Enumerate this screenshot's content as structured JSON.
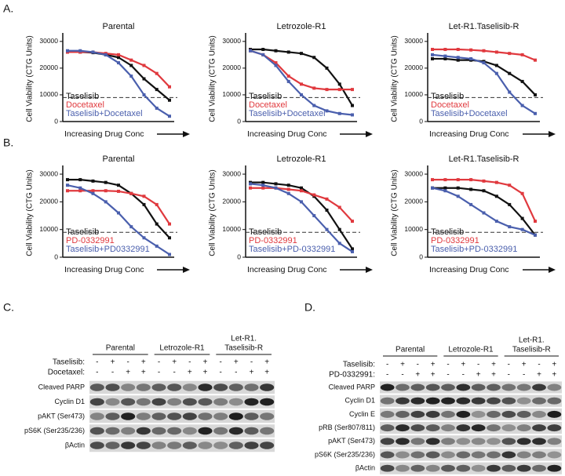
{
  "panels": [
    "A.",
    "B.",
    "C.",
    "D."
  ],
  "chart_data": [
    {
      "type": "line",
      "title": "Parental",
      "ylabel": "Cell Viability (CTG Units)",
      "xlabel": "Increasing Drug Conc",
      "categories": [
        null,
        null,
        null,
        null,
        null,
        null,
        null,
        null,
        null
      ],
      "ylim": [
        0,
        32000
      ],
      "yticks": [
        0,
        10000,
        20000,
        30000
      ],
      "reference_line": 9000,
      "series": [
        {
          "name": "Taselisib",
          "color": "#111111",
          "values": [
            26000,
            26000,
            25800,
            25000,
            24000,
            21000,
            16000,
            12000,
            8000
          ]
        },
        {
          "name": "Docetaxel",
          "color": "#e0393e",
          "values": [
            26000,
            26000,
            26000,
            25500,
            25000,
            23000,
            21000,
            18000,
            13000
          ]
        },
        {
          "name": "Taselisib+Docetaxel",
          "color": "#4a5fad",
          "values": [
            26500,
            26500,
            26000,
            25000,
            22000,
            17000,
            10000,
            5000,
            2000
          ]
        }
      ]
    },
    {
      "type": "line",
      "title": "Letrozole-R1",
      "ylabel": "Cell Viability (CTG Units)",
      "xlabel": "Increasing Drug Conc",
      "categories": [
        null,
        null,
        null,
        null,
        null,
        null,
        null,
        null,
        null
      ],
      "ylim": [
        0,
        32000
      ],
      "yticks": [
        0,
        10000,
        20000,
        30000
      ],
      "reference_line": 9000,
      "series": [
        {
          "name": "Taselisib",
          "color": "#111111",
          "values": [
            27000,
            27000,
            26500,
            26000,
            25500,
            24000,
            20000,
            14000,
            6000
          ]
        },
        {
          "name": "Docetaxel",
          "color": "#e0393e",
          "values": [
            26500,
            25000,
            22000,
            17000,
            14000,
            12500,
            12000,
            12000,
            12000
          ]
        },
        {
          "name": "Taselisib+Docetaxel",
          "color": "#4a5fad",
          "values": [
            26500,
            25000,
            21000,
            15000,
            10000,
            6000,
            4000,
            3000,
            2500
          ]
        }
      ]
    },
    {
      "type": "line",
      "title": "Let-R1.Taselisib-R",
      "ylabel": "Cell Viability (CTG Units)",
      "xlabel": "Increasing Drug Conc",
      "categories": [
        null,
        null,
        null,
        null,
        null,
        null,
        null,
        null,
        null
      ],
      "ylim": [
        0,
        32000
      ],
      "yticks": [
        0,
        10000,
        20000,
        30000
      ],
      "reference_line": 9000,
      "series": [
        {
          "name": "Taselisib",
          "color": "#111111",
          "values": [
            23500,
            23500,
            23000,
            23000,
            22500,
            21000,
            18000,
            15000,
            10000
          ]
        },
        {
          "name": "Docetaxel",
          "color": "#e0393e",
          "values": [
            27000,
            27000,
            27000,
            26800,
            26500,
            26000,
            25500,
            25000,
            23000
          ]
        },
        {
          "name": "Taselisib+Docetaxel",
          "color": "#4a5fad",
          "values": [
            25000,
            24500,
            24000,
            23500,
            22000,
            18000,
            11000,
            6000,
            3000
          ]
        }
      ]
    },
    {
      "type": "line",
      "title": "Parental",
      "ylabel": "Cell Viability (CTG Units)",
      "xlabel": "Increasing Drug Conc",
      "categories": [
        null,
        null,
        null,
        null,
        null,
        null,
        null,
        null,
        null
      ],
      "ylim": [
        0,
        32000
      ],
      "yticks": [
        0,
        10000,
        20000,
        30000
      ],
      "reference_line": 9000,
      "series": [
        {
          "name": "Taselisib",
          "color": "#111111",
          "values": [
            28000,
            28000,
            27500,
            27000,
            26000,
            23000,
            19000,
            12000,
            7000
          ]
        },
        {
          "name": "PD-0332991",
          "color": "#e0393e",
          "values": [
            24000,
            24000,
            24000,
            24000,
            23800,
            23000,
            22000,
            19000,
            12000
          ]
        },
        {
          "name": "Taselisib+PD0332991",
          "color": "#4a5fad",
          "values": [
            26000,
            25000,
            23000,
            20000,
            16000,
            11000,
            7000,
            4000,
            1000
          ]
        }
      ]
    },
    {
      "type": "line",
      "title": "Letrozole-R1",
      "ylabel": "Cell Viability (CTG Units)",
      "xlabel": "Increasing Drug Conc",
      "categories": [
        null,
        null,
        null,
        null,
        null,
        null,
        null,
        null,
        null
      ],
      "ylim": [
        0,
        32000
      ],
      "yticks": [
        0,
        10000,
        20000,
        30000
      ],
      "reference_line": 9000,
      "series": [
        {
          "name": "Taselisib",
          "color": "#111111",
          "values": [
            27000,
            27000,
            26500,
            26000,
            25000,
            22000,
            17000,
            10000,
            3000
          ]
        },
        {
          "name": "PD-0332991",
          "color": "#e0393e",
          "values": [
            25000,
            25000,
            25000,
            24500,
            24000,
            22500,
            21000,
            18000,
            13000
          ]
        },
        {
          "name": "Taselisib+PD-0332991",
          "color": "#4a5fad",
          "values": [
            26500,
            26000,
            25000,
            23000,
            20000,
            15000,
            10000,
            5000,
            2000
          ]
        }
      ]
    },
    {
      "type": "line",
      "title": "Let-R1.Taselisib-R",
      "ylabel": "Cell Viability (CTG Units)",
      "xlabel": "Increasing Drug Conc",
      "categories": [
        null,
        null,
        null,
        null,
        null,
        null,
        null,
        null,
        null
      ],
      "ylim": [
        0,
        32000
      ],
      "yticks": [
        0,
        10000,
        20000,
        30000
      ],
      "reference_line": 9000,
      "series": [
        {
          "name": "Taselisib",
          "color": "#111111",
          "values": [
            25000,
            25000,
            25000,
            24500,
            24000,
            22000,
            19000,
            14000,
            8000
          ]
        },
        {
          "name": "PD-0332991",
          "color": "#e0393e",
          "values": [
            28000,
            28000,
            28000,
            28000,
            27500,
            27000,
            26000,
            23000,
            13000
          ]
        },
        {
          "name": "Taselisib+PD-0332991",
          "color": "#4a5fad",
          "values": [
            25000,
            24000,
            22000,
            19000,
            16000,
            13000,
            11000,
            10000,
            8000
          ]
        }
      ]
    }
  ],
  "blots": [
    {
      "groups": [
        [
          "Parental"
        ],
        [
          "Letrozole-R1"
        ],
        [
          "Let-R1.",
          "Taselisib-R"
        ]
      ],
      "treatments": [
        {
          "name": "Taselisib:",
          "signs": [
            "-",
            "+",
            "-",
            "+",
            "-",
            "+",
            "-",
            "+",
            "-",
            "+",
            "-",
            "+"
          ]
        },
        {
          "name": "Docetaxel:",
          "signs": [
            "-",
            "-",
            "+",
            "+",
            "-",
            "-",
            "+",
            "+",
            "-",
            "-",
            "+",
            "+"
          ]
        }
      ],
      "bands": [
        "Cleaved PARP",
        "Cyclin D1",
        "pAKT (Ser473)",
        "pS6K (Ser235/236)",
        "βActin"
      ]
    },
    {
      "groups": [
        [
          "Parental"
        ],
        [
          "Letrozole-R1"
        ],
        [
          "Let-R1.",
          "Taselisib-R"
        ]
      ],
      "treatments": [
        {
          "name": "Taselisib:",
          "signs": [
            "-",
            "+",
            "-",
            "+",
            "-",
            "+",
            "-",
            "+",
            "-",
            "+",
            "-",
            "+"
          ]
        },
        {
          "name": "PD-0332991:",
          "signs": [
            "-",
            "-",
            "+",
            "+",
            "-",
            "-",
            "+",
            "+",
            "-",
            "-",
            "+",
            "+"
          ]
        }
      ],
      "bands": [
        "Cleaved PARP",
        "Cyclin D1",
        "Cyclin E",
        "pRB (Ser807/811)",
        "pAKT (Ser473)",
        "pS6K (Ser235/236)",
        "βActin"
      ]
    }
  ]
}
